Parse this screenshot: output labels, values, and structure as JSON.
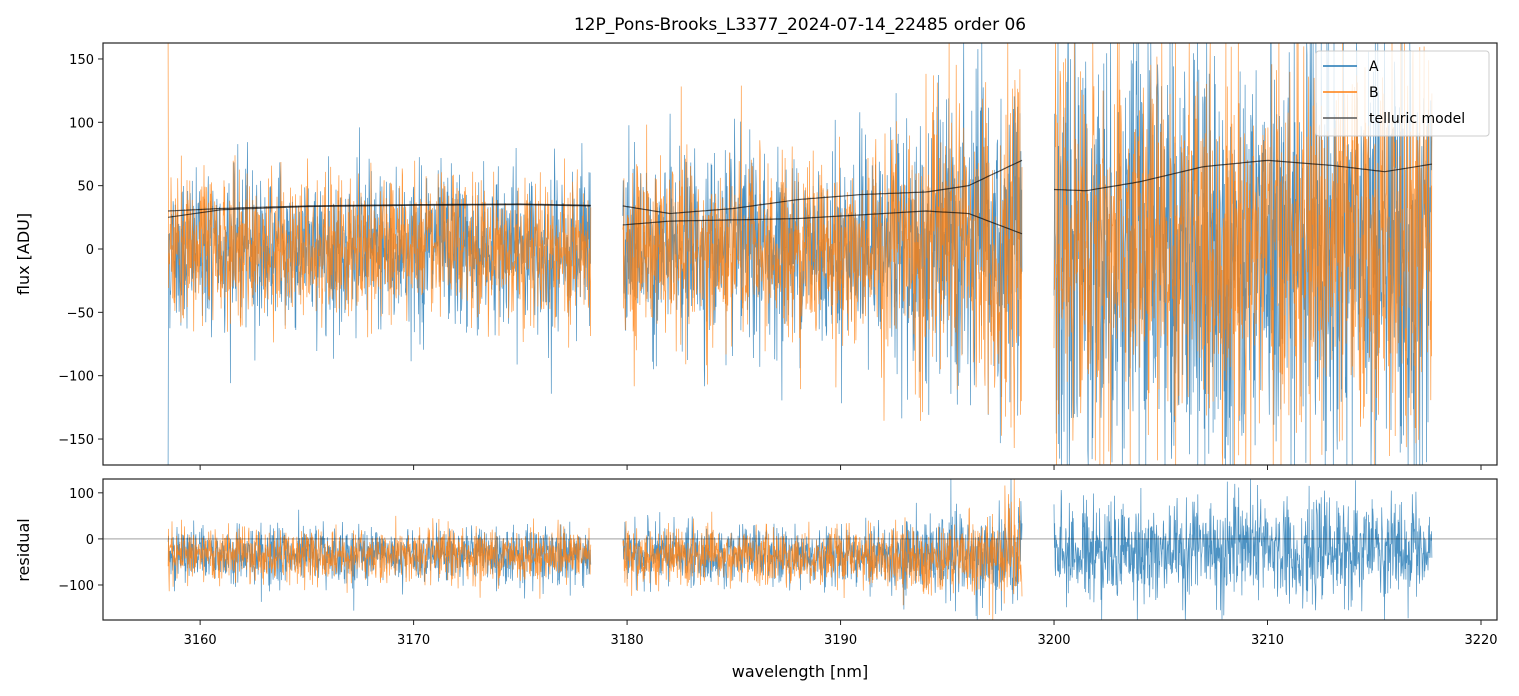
{
  "chart_data": {
    "type": "line",
    "title": "12P_Pons-Brooks_L3377_2024-07-14_22485  order 06",
    "xlabel": "wavelength [nm]",
    "panels": [
      {
        "name": "flux",
        "ylabel": "flux [ADU]",
        "ylim": [
          -170.5,
          162.6
        ],
        "yticks": [
          -150,
          -100,
          -50,
          0,
          50,
          100,
          150
        ],
        "ytick_labels": [
          "−150",
          "−100",
          "−50",
          "0",
          "50",
          "100",
          "150"
        ]
      },
      {
        "name": "residual",
        "ylabel": "residual",
        "ylim": [
          -176,
          130
        ],
        "yticks": [
          -100,
          0,
          100
        ],
        "ytick_labels": [
          "−100",
          "0",
          "100"
        ],
        "zero_line": true
      }
    ],
    "xlim": [
      3155.45,
      3220.75
    ],
    "xticks": [
      3160,
      3170,
      3180,
      3190,
      3200,
      3210,
      3220
    ],
    "xtick_labels": [
      "3160",
      "3170",
      "3180",
      "3190",
      "3200",
      "3210",
      "3220"
    ],
    "legend": {
      "placement": "top-right",
      "entries": [
        {
          "label": "A",
          "color": "#1f77b4"
        },
        {
          "label": "B",
          "color": "#ff7f0e"
        },
        {
          "label": "telluric model",
          "color": "#555555"
        }
      ]
    },
    "series": [
      {
        "name": "A",
        "color": "#1f77b4",
        "segments": [
          {
            "x": [
              3158.5,
              3178.3
            ],
            "flux_sigma": 38,
            "resid_mean": -35,
            "resid_sigma": 30
          },
          {
            "x": [
              3179.8,
              3198.5
            ],
            "flux_sigma": 45,
            "flux_sigma_end": 90,
            "resid_mean": -35,
            "resid_sigma": 32,
            "resid_sigma_end": 60
          },
          {
            "x": [
              3200.0,
              3217.7
            ],
            "flux_sigma": 110,
            "resid_mean": -25,
            "resid_sigma": 55
          }
        ]
      },
      {
        "name": "B",
        "color": "#ff7f0e",
        "segments": [
          {
            "x": [
              3158.5,
              3178.3
            ],
            "flux_sigma": 36,
            "resid_mean": -35,
            "resid_sigma": 28
          },
          {
            "x": [
              3179.8,
              3198.5
            ],
            "flux_sigma": 45,
            "flux_sigma_end": 85,
            "resid_mean": -40,
            "resid_sigma": 30,
            "resid_sigma_end": 55
          },
          {
            "x": [
              3200.0,
              3217.7
            ],
            "flux_sigma": 90,
            "resid": false
          }
        ]
      }
    ],
    "telluric_model": [
      {
        "name": "A seg1",
        "x": [
          3158.5,
          3161,
          3165,
          3170,
          3175,
          3178.3
        ],
        "y": [
          30,
          32,
          34,
          35,
          35.5,
          34.5
        ]
      },
      {
        "name": "B seg1",
        "x": [
          3158.5,
          3161,
          3165,
          3170,
          3175,
          3178.3
        ],
        "y": [
          25,
          31,
          33.5,
          34.5,
          35,
          34
        ]
      },
      {
        "name": "A seg2",
        "x": [
          3179.8,
          3182,
          3185,
          3188,
          3191,
          3194,
          3196,
          3198.5
        ],
        "y": [
          34,
          28,
          32,
          39,
          43,
          45,
          50,
          70
        ]
      },
      {
        "name": "B seg2",
        "x": [
          3179.8,
          3182,
          3185,
          3188,
          3191,
          3194,
          3196,
          3198.5
        ],
        "y": [
          19,
          22,
          23,
          24,
          27,
          30,
          28,
          12
        ]
      },
      {
        "name": "A seg3",
        "x": [
          3200.0,
          3201.5,
          3204,
          3207,
          3210,
          3213,
          3215.5,
          3217.7
        ],
        "y": [
          47,
          46,
          53,
          65,
          70,
          66,
          61,
          67
        ]
      }
    ]
  }
}
